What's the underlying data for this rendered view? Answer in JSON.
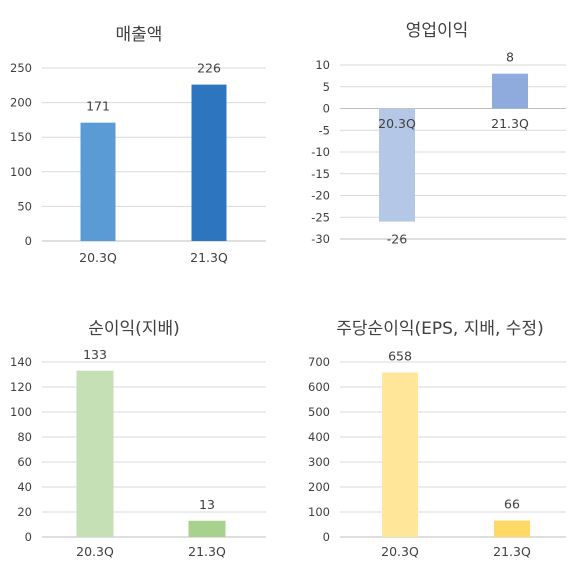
{
  "chart_data": [
    {
      "type": "bar",
      "title": "매출액",
      "categories": [
        "20.3Q",
        "21.3Q"
      ],
      "values": [
        171,
        226
      ],
      "ylim": [
        0,
        250
      ],
      "yticks": [
        0,
        50,
        100,
        150,
        200,
        250
      ],
      "colors": [
        "#5B9BD5",
        "#2E75C0"
      ],
      "grid": true
    },
    {
      "type": "bar",
      "title": "영업이익",
      "categories": [
        "20.3Q",
        "21.3Q"
      ],
      "values": [
        -26,
        8
      ],
      "ylim": [
        -30,
        10
      ],
      "yticks": [
        10,
        5,
        0,
        -5,
        -10,
        -15,
        -20,
        -25,
        -30
      ],
      "colors": [
        "#B4C7E7",
        "#8FAADC"
      ],
      "grid": true
    },
    {
      "type": "bar",
      "title": "순이익(지배)",
      "categories": [
        "20.3Q",
        "21.3Q"
      ],
      "values": [
        133,
        13
      ],
      "ylim": [
        0,
        140
      ],
      "yticks": [
        0,
        20,
        40,
        60,
        80,
        100,
        120,
        140
      ],
      "colors": [
        "#C5E0B4",
        "#A9D18E"
      ],
      "grid": true
    },
    {
      "type": "bar",
      "title": "주당순이익(EPS, 지배, 수정)",
      "categories": [
        "20.3Q",
        "21.3Q"
      ],
      "values": [
        658,
        66
      ],
      "ylim": [
        0,
        700
      ],
      "yticks": [
        0,
        100,
        200,
        300,
        400,
        500,
        600,
        700
      ],
      "colors": [
        "#FFE699",
        "#FFD966"
      ],
      "grid": true
    }
  ]
}
